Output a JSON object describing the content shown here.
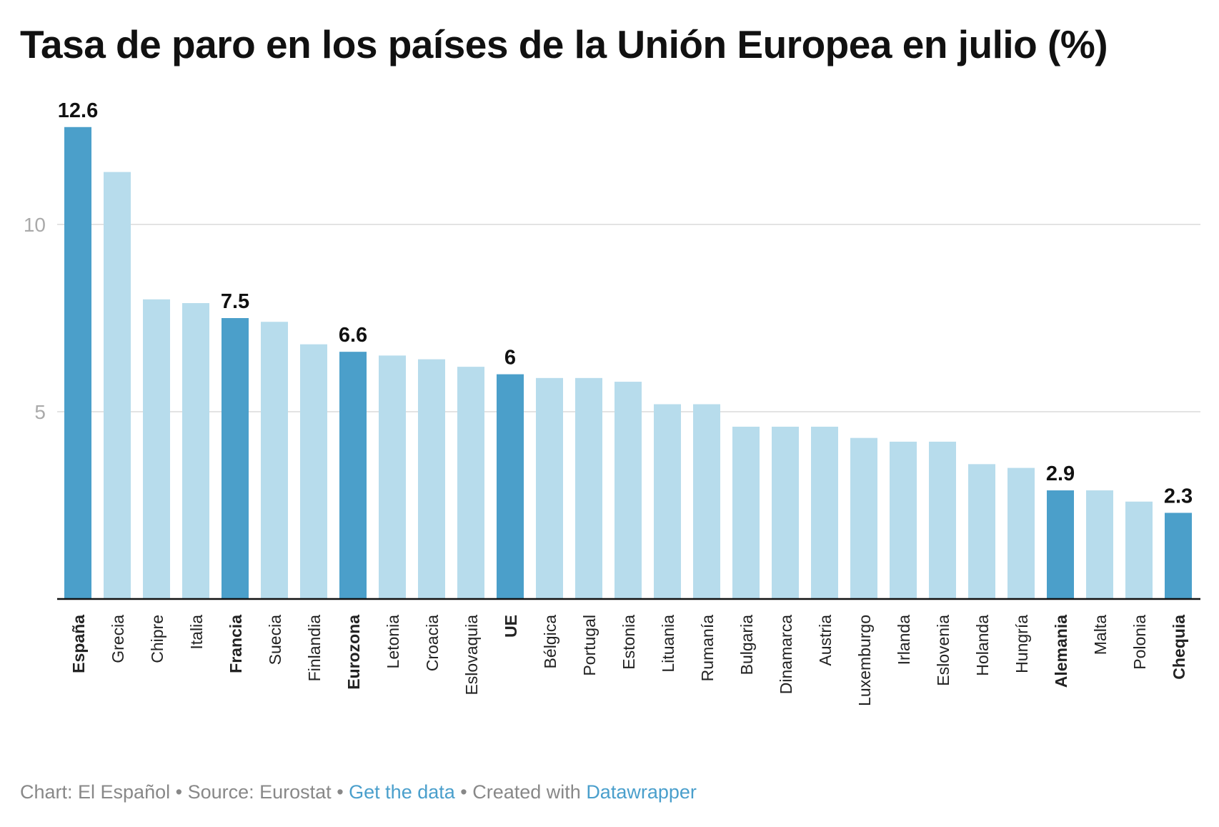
{
  "chart_data": {
    "type": "bar",
    "title": "Tasa de paro en los países de la Unión Europea en julio (%)",
    "xlabel": "",
    "ylabel": "",
    "ylim": [
      0,
      13
    ],
    "yticks": [
      5,
      10
    ],
    "grid": true,
    "colors": {
      "highlight": "#4b9fca",
      "default": "#b7dcec",
      "axis": "#111111",
      "grid": "#e3e3e3"
    },
    "categories": [
      "España",
      "Grecia",
      "Chipre",
      "Italia",
      "Francia",
      "Suecia",
      "Finlandia",
      "Eurozona",
      "Letonia",
      "Croacia",
      "Eslovaquia",
      "UE",
      "Bélgica",
      "Portugal",
      "Estonia",
      "Lituania",
      "Rumanía",
      "Bulgaria",
      "Dinamarca",
      "Austria",
      "Luxemburgo",
      "Irlanda",
      "Eslovenia",
      "Holanda",
      "Hungría",
      "Alemania",
      "Malta",
      "Polonia",
      "Chequia"
    ],
    "values": [
      12.6,
      11.4,
      8.0,
      7.9,
      7.5,
      7.4,
      6.8,
      6.6,
      6.5,
      6.4,
      6.2,
      6.0,
      5.9,
      5.9,
      5.8,
      5.2,
      5.2,
      4.6,
      4.6,
      4.6,
      4.3,
      4.2,
      4.2,
      3.6,
      3.5,
      2.9,
      2.9,
      2.6,
      2.3
    ],
    "highlighted": [
      "España",
      "Francia",
      "Eurozona",
      "UE",
      "Alemania",
      "Chequia"
    ],
    "data_labels": {
      "España": "12.6",
      "Francia": "7.5",
      "Eurozona": "6.6",
      "UE": "6",
      "Alemania": "2.9",
      "Chequia": "2.3"
    }
  },
  "footer": {
    "chart_credit": "Chart: El Español",
    "sep1": " • ",
    "source": "Source: Eurostat",
    "sep2": " • ",
    "get_data": "Get the data",
    "sep3": " • ",
    "created_with": "Created with ",
    "datawrapper": "Datawrapper"
  }
}
